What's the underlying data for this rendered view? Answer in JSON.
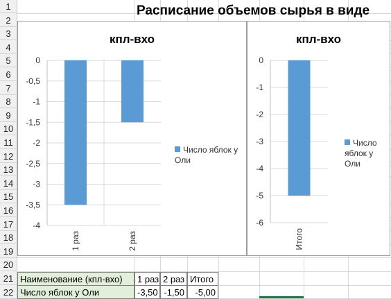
{
  "sheet": {
    "title": "Расписание объемов сырья в виде",
    "row_numbers": [
      "1",
      "2",
      "3",
      "4",
      "5",
      "6",
      "7",
      "8",
      "9",
      "10",
      "11",
      "12",
      "13",
      "14",
      "15",
      "16",
      "17",
      "18",
      "19",
      "20",
      "21",
      "22"
    ]
  },
  "chart_data": [
    {
      "type": "bar",
      "title": "кпл-вхо",
      "categories": [
        "1 раз",
        "2 раз"
      ],
      "series": [
        {
          "name": "Число яблок у Оли",
          "values": [
            -3.5,
            -1.5
          ]
        }
      ],
      "y_ticks": [
        "0",
        "-0,5",
        "-1",
        "-1,5",
        "-2",
        "-2,5",
        "-3",
        "-3,5",
        "-4"
      ],
      "ylim": [
        -4,
        0
      ],
      "grid": true,
      "legend": "right",
      "color": "#5b9bd5"
    },
    {
      "type": "bar",
      "title": "кпл-вхо",
      "categories": [
        "Итого"
      ],
      "series": [
        {
          "name": "Число яблок у Оли",
          "values": [
            -5
          ]
        }
      ],
      "y_ticks": [
        "0",
        "-1",
        "-2",
        "-3",
        "-4",
        "-5",
        "-6"
      ],
      "ylim": [
        -6,
        0
      ],
      "grid": true,
      "legend": "right",
      "color": "#5b9bd5"
    }
  ],
  "table": {
    "header": [
      "Наименование (кпл-вхо)",
      "1 раз",
      "2 раз",
      "Итого"
    ],
    "row": [
      "Число яблок у Оли",
      "-3,50",
      "-1,50",
      "-5,00"
    ]
  }
}
